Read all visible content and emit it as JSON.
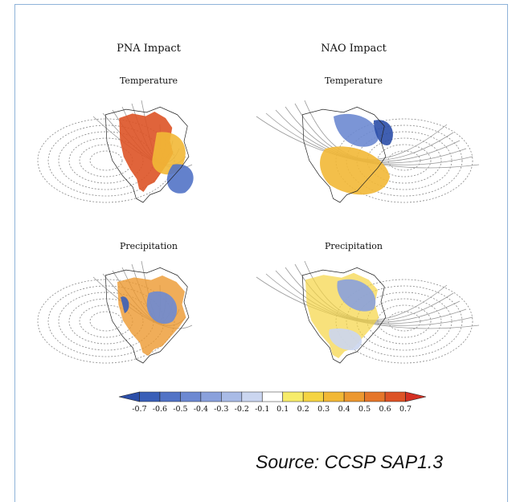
{
  "figure": {
    "columns": [
      {
        "title": "PNA Impact",
        "panels": [
          "Temperature",
          "Precipitation"
        ]
      },
      {
        "title": "NAO Impact",
        "panels": [
          "Temperature",
          "Precipitation"
        ]
      }
    ],
    "colorbar": {
      "ticks": [
        -0.7,
        -0.6,
        -0.5,
        -0.4,
        -0.3,
        -0.2,
        -0.1,
        0.1,
        0.2,
        0.3,
        0.4,
        0.5,
        0.6,
        0.7
      ],
      "colors": [
        "#2b4ea8",
        "#3a5fb8",
        "#5273c6",
        "#6d89d2",
        "#8aa1dc",
        "#a9bbe6",
        "#cbd6f0",
        "#ffffff",
        "#f7ec6a",
        "#f5d443",
        "#f2b836",
        "#ec9830",
        "#e5762a",
        "#dd5326",
        "#d42f22"
      ]
    },
    "source": "Source: CCSP SAP1.3"
  }
}
